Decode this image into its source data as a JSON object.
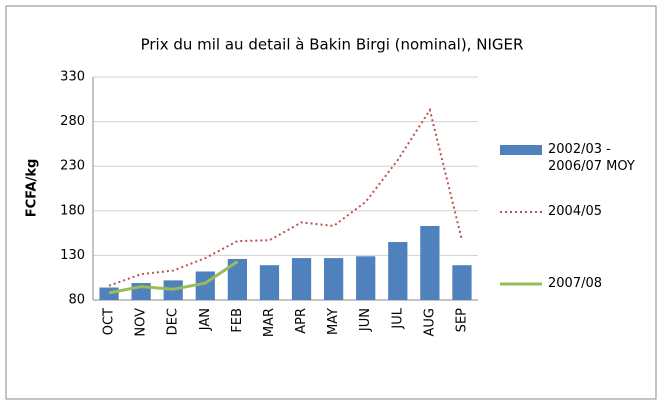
{
  "chart_data": {
    "type": "bar",
    "title": "Prix du mil au detail à Bakin Birgi (nominal), NIGER",
    "y_label": "FCFA/kg",
    "categories": [
      "OCT",
      "NOV",
      "DEC",
      "JAN",
      "FEB",
      "MAR",
      "APR",
      "MAY",
      "JUN",
      "JUL",
      "AUG",
      "SEP"
    ],
    "series": [
      {
        "name": "2002/03 - 2006/07 MOY",
        "type": "bar",
        "color": "#4f81bd",
        "values": [
          94,
          99,
          102,
          112,
          126,
          119,
          127,
          127,
          129,
          145,
          163,
          119
        ]
      },
      {
        "name": "2004/05",
        "type": "line",
        "style": "dotted",
        "color": "#c0504d",
        "values": [
          96,
          109,
          113,
          127,
          146,
          147,
          167,
          163,
          190,
          237,
          293,
          147
        ]
      },
      {
        "name": "2007/08",
        "type": "line",
        "style": "solid",
        "color": "#9bbb59",
        "values": [
          88,
          95,
          92,
          99,
          123,
          null,
          null,
          null,
          null,
          null,
          null,
          null
        ]
      }
    ],
    "ylim": [
      80,
      330
    ],
    "yticks": [
      80,
      130,
      180,
      230,
      280,
      330
    ],
    "grid": true,
    "legend": "right"
  }
}
